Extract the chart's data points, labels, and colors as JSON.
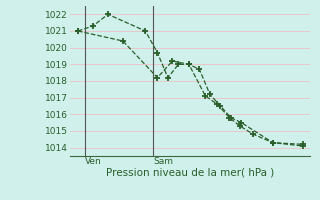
{
  "bg_color": "#cff0eb",
  "grid_color": "#e8c8c8",
  "line_color": "#2a5e2a",
  "ylim": [
    1013.5,
    1022.5
  ],
  "yticks": [
    1014,
    1015,
    1016,
    1017,
    1018,
    1019,
    1020,
    1021,
    1022
  ],
  "xlim": [
    0,
    16
  ],
  "ven_x": 1.0,
  "sam_x": 5.5,
  "series1_x": [
    0.5,
    1.5,
    2.5,
    5.0,
    5.8,
    6.5,
    7.2,
    7.9,
    8.6,
    9.3,
    10.0,
    10.7,
    11.4,
    13.5,
    15.5
  ],
  "series1_y": [
    1021.0,
    1021.3,
    1022.0,
    1021.0,
    1019.7,
    1018.2,
    1019.0,
    1019.0,
    1018.7,
    1017.2,
    1016.5,
    1015.8,
    1015.5,
    1014.3,
    1014.2
  ],
  "series2_x": [
    0.5,
    3.5,
    5.8,
    6.8,
    7.9,
    9.0,
    9.8,
    10.6,
    11.3,
    12.2,
    13.5,
    15.5
  ],
  "series2_y": [
    1021.0,
    1020.4,
    1018.2,
    1019.2,
    1019.0,
    1017.1,
    1016.6,
    1015.8,
    1015.3,
    1014.8,
    1014.3,
    1014.1
  ],
  "ven_label": "Ven",
  "sam_label": "Sam",
  "xlabel": "Pression niveau de la mer( hPa )",
  "xlabel_fontsize": 7.5,
  "tick_fontsize": 6.5,
  "label_fontsize": 6.5
}
